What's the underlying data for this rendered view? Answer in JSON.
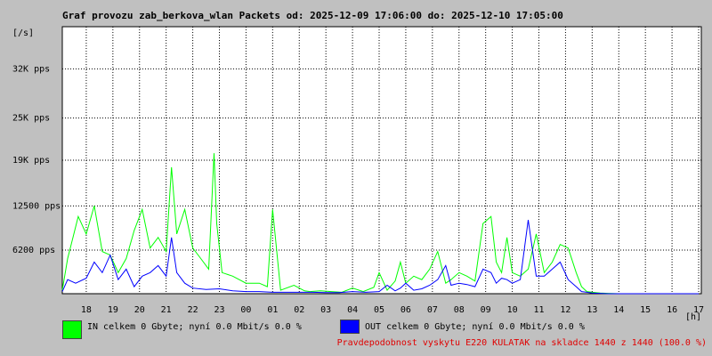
{
  "title": "Graf provozu zab_berkova_wlan Packets od: 2025-12-09 17:06:00 do: 2025-12-10 17:05:00",
  "legend": {
    "in": {
      "label": "IN celkem 0 Gbyte; nyní   0.0 Mbit/s 0.0 %",
      "color": "#00ff00"
    },
    "out": {
      "label": "OUT celkem 0 Gbyte; nyní   0.0 Mbit/s 0.0 %",
      "color": "#0000ff"
    }
  },
  "note": "Pravdepodobnost vyskytu E220 KULATAK na skladce 1440 z 1440 (100.0 %)",
  "chart_data": {
    "type": "line",
    "title": "Graf provozu zab_berkova_wlan Packets od: 2025-12-09 17:06:00 do: 2025-12-10 17:05:00",
    "ylabel": "[/s]",
    "xlabel": "[h]",
    "y_ticks": [
      {
        "value": 6200,
        "label": "6200 pps"
      },
      {
        "value": 12500,
        "label": "12500 pps"
      },
      {
        "value": 19000,
        "label": "19K pps"
      },
      {
        "value": 25000,
        "label": "25K pps"
      },
      {
        "value": 32000,
        "label": "32K pps"
      }
    ],
    "ylim": [
      0,
      38000
    ],
    "x_tick_labels": [
      "18",
      "19",
      "20",
      "21",
      "22",
      "23",
      "00",
      "01",
      "02",
      "03",
      "04",
      "05",
      "06",
      "07",
      "08",
      "09",
      "10",
      "11",
      "12",
      "13",
      "14",
      "15",
      "16",
      "17"
    ],
    "grid": true,
    "series": [
      {
        "name": "IN",
        "color": "#00ff00",
        "x": [
          17.1,
          17.3,
          17.5,
          17.7,
          18.0,
          18.3,
          18.6,
          18.9,
          19.2,
          19.5,
          19.8,
          20.1,
          20.4,
          20.7,
          21.0,
          21.2,
          21.4,
          21.7,
          22.0,
          22.3,
          22.6,
          22.8,
          22.9,
          23.1,
          23.5,
          24.0,
          24.5,
          24.8,
          25.0,
          25.3,
          25.8,
          26.2,
          26.4,
          26.8,
          27.2,
          27.6,
          28.0,
          28.4,
          28.8,
          29.0,
          29.3,
          29.6,
          29.8,
          30.0,
          30.3,
          30.6,
          30.9,
          31.2,
          31.5,
          31.7,
          32.0,
          32.3,
          32.6,
          32.9,
          33.2,
          33.4,
          33.6,
          33.8,
          34.0,
          34.3,
          34.6,
          34.9,
          35.2,
          35.5,
          35.8,
          36.1,
          36.4,
          36.6,
          36.8,
          37.0,
          37.3,
          37.6,
          38.0,
          38.5,
          39.0,
          39.5,
          40.0,
          40.5,
          41.0
        ],
        "y": [
          500,
          5000,
          8000,
          11000,
          8500,
          12500,
          6000,
          5500,
          3000,
          5000,
          9000,
          12000,
          6500,
          8000,
          6000,
          18000,
          8500,
          12000,
          6500,
          5000,
          3500,
          20000,
          10000,
          3000,
          2500,
          1500,
          1500,
          1000,
          12000,
          500,
          1200,
          400,
          300,
          400,
          300,
          200,
          800,
          300,
          900,
          3000,
          500,
          1800,
          4500,
          1500,
          2500,
          2000,
          3500,
          6000,
          1500,
          2000,
          3000,
          2500,
          1800,
          10000,
          11000,
          4500,
          3000,
          8000,
          3000,
          2500,
          3500,
          8500,
          3000,
          4500,
          7000,
          6500,
          3000,
          1000,
          300,
          200,
          100,
          50,
          0,
          0,
          0,
          0,
          0,
          0,
          0
        ]
      },
      {
        "name": "OUT",
        "color": "#0000ff",
        "x": [
          17.1,
          17.3,
          17.6,
          18.0,
          18.3,
          18.6,
          18.9,
          19.2,
          19.5,
          19.8,
          20.1,
          20.4,
          20.7,
          21.0,
          21.2,
          21.4,
          21.7,
          22.0,
          22.5,
          23.0,
          23.5,
          24.0,
          24.5,
          25.0,
          25.5,
          26.0,
          26.5,
          27.0,
          27.5,
          28.0,
          28.5,
          29.0,
          29.3,
          29.6,
          29.8,
          30.0,
          30.3,
          30.6,
          30.9,
          31.2,
          31.5,
          31.7,
          32.0,
          32.3,
          32.6,
          32.9,
          33.2,
          33.4,
          33.6,
          33.8,
          34.0,
          34.3,
          34.6,
          34.9,
          35.2,
          35.5,
          35.8,
          36.1,
          36.4,
          36.6,
          36.8,
          37.0,
          37.3,
          37.6,
          38.0,
          38.5,
          39.0,
          39.5,
          40.0,
          40.5,
          41.0
        ],
        "y": [
          300,
          2000,
          1500,
          2200,
          4500,
          3000,
          5500,
          2000,
          3500,
          1000,
          2500,
          3000,
          4000,
          2500,
          8000,
          3000,
          1500,
          800,
          600,
          700,
          400,
          300,
          300,
          200,
          200,
          200,
          200,
          150,
          150,
          300,
          200,
          300,
          1200,
          400,
          800,
          1500,
          500,
          700,
          1200,
          2000,
          4000,
          1200,
          1500,
          1300,
          1000,
          3500,
          3000,
          1500,
          2200,
          2000,
          1500,
          2000,
          10500,
          2500,
          2500,
          3500,
          4500,
          2000,
          1000,
          300,
          200,
          100,
          50,
          0,
          0,
          0,
          0,
          0,
          0,
          0,
          0
        ]
      }
    ]
  }
}
